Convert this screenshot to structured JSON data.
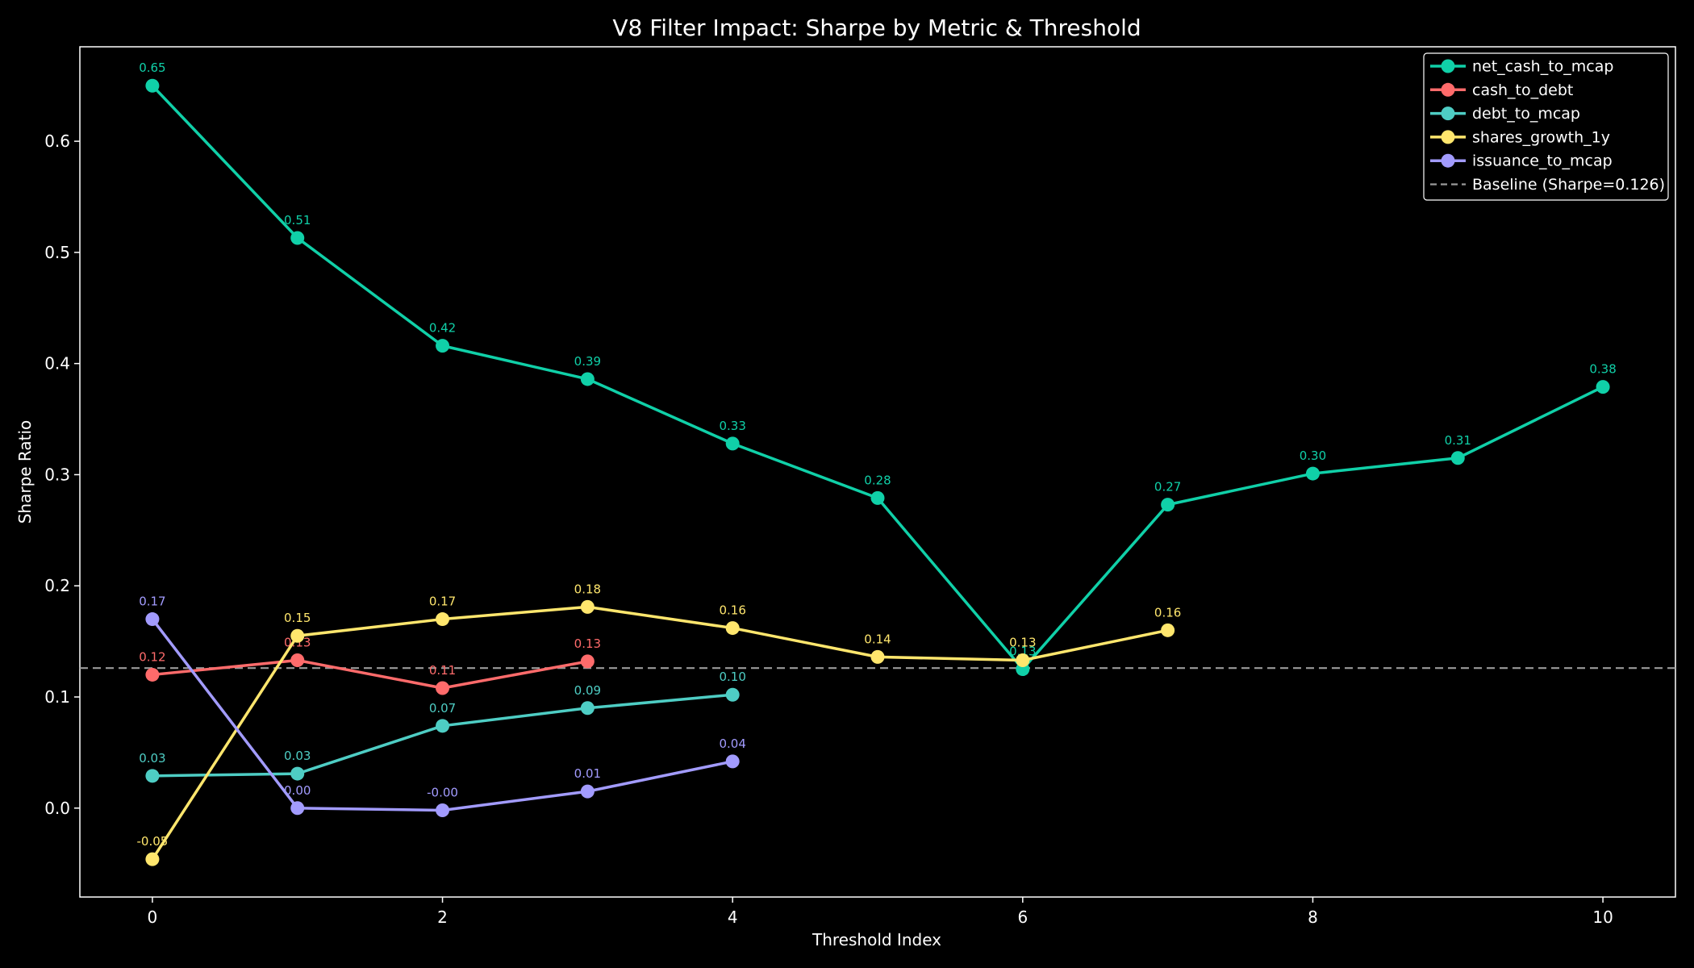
{
  "chart_data": {
    "type": "line",
    "title": "V8 Filter Impact: Sharpe by Metric & Threshold",
    "xlabel": "Threshold Index",
    "ylabel": "Sharpe Ratio",
    "xlim": [
      -0.5,
      10.5
    ],
    "ylim": [
      -0.08,
      0.685
    ],
    "xticks": [
      0,
      2,
      4,
      6,
      8,
      10
    ],
    "yticks": [
      0.0,
      0.1,
      0.2,
      0.3,
      0.4,
      0.5,
      0.6
    ],
    "xtick_labels": [
      "0",
      "2",
      "4",
      "6",
      "8",
      "10"
    ],
    "ytick_labels": [
      "0.0",
      "0.1",
      "0.2",
      "0.3",
      "0.4",
      "0.5",
      "0.6"
    ],
    "grid": false,
    "legend_position": "top-right",
    "baseline": {
      "label": "Baseline (Sharpe=0.126)",
      "value": 0.126,
      "color": "#9a9a9a"
    },
    "series": [
      {
        "name": "net_cash_to_mcap",
        "color": "#10d0a8",
        "x": [
          0,
          1,
          2,
          3,
          4,
          5,
          6,
          7,
          8,
          9,
          10
        ],
        "values": [
          0.65,
          0.513,
          0.416,
          0.386,
          0.328,
          0.279,
          0.125,
          0.273,
          0.301,
          0.315,
          0.379
        ],
        "labels": [
          "0.65",
          "0.51",
          "0.42",
          "0.39",
          "0.33",
          "0.28",
          "0.13",
          "0.27",
          "0.30",
          "0.31",
          "0.38"
        ]
      },
      {
        "name": "cash_to_debt",
        "color": "#ff6b6b",
        "x": [
          0,
          1,
          2,
          3
        ],
        "values": [
          0.12,
          0.133,
          0.108,
          0.132
        ],
        "labels": [
          "0.12",
          "0.13",
          "0.11",
          "0.13"
        ]
      },
      {
        "name": "debt_to_mcap",
        "color": "#4ecdc4",
        "x": [
          0,
          1,
          2,
          3,
          4
        ],
        "values": [
          0.029,
          0.031,
          0.074,
          0.09,
          0.102
        ],
        "labels": [
          "0.03",
          "0.03",
          "0.07",
          "0.09",
          "0.10"
        ]
      },
      {
        "name": "shares_growth_1y",
        "color": "#ffe66d",
        "x": [
          0,
          1,
          2,
          3,
          4,
          5,
          6,
          7
        ],
        "values": [
          -0.046,
          0.155,
          0.17,
          0.181,
          0.162,
          0.136,
          0.133,
          0.16
        ],
        "labels": [
          "-0.05",
          "0.15",
          "0.17",
          "0.18",
          "0.16",
          "0.14",
          "0.13",
          "0.16"
        ]
      },
      {
        "name": "issuance_to_mcap",
        "color": "#a29bfe",
        "x": [
          0,
          1,
          2,
          3,
          4
        ],
        "values": [
          0.17,
          0.0,
          -0.002,
          0.015,
          0.042
        ],
        "labels": [
          "0.17",
          "0.00",
          "-0.00",
          "0.01",
          "0.04"
        ]
      }
    ]
  }
}
